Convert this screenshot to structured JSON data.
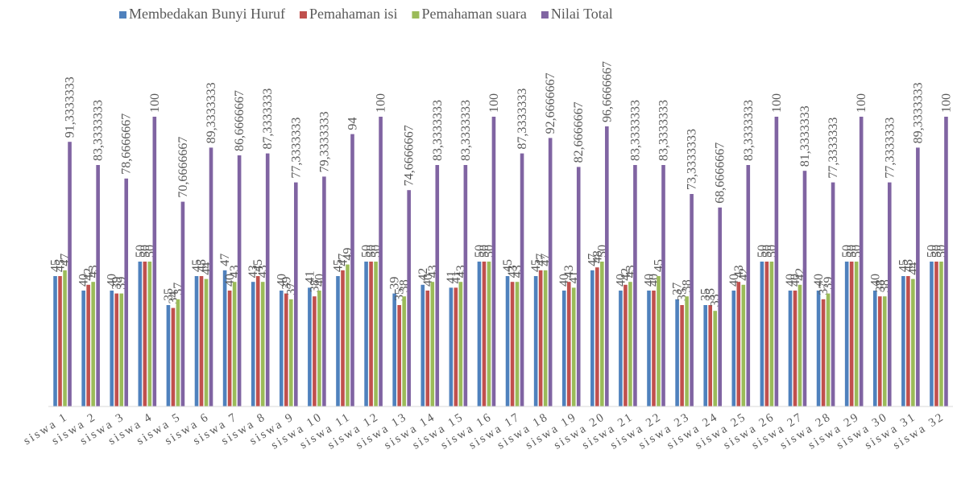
{
  "chart_data": {
    "type": "bar",
    "categories": [
      "siswa 1",
      "siswa 2",
      "siswa 3",
      "siswa 4",
      "siswa 5",
      "siswa 6",
      "siswa 7",
      "siswa 8",
      "siswa 9",
      "siswa 10",
      "siswa 11",
      "siswa 12",
      "siswa 13",
      "siswa 14",
      "siswa 15",
      "siswa 16",
      "siswa 17",
      "siswa 18",
      "siswa 19",
      "siswa 20",
      "siswa 21",
      "siswa 22",
      "siswa 23",
      "siswa 24",
      "siswa 25",
      "siswa 26",
      "siswa 27",
      "siswa 28",
      "siswa 29",
      "siswa 30",
      "siswa 31",
      "siswa 32"
    ],
    "series": [
      {
        "name": "Membedakan Bunyi Huruf",
        "color": "#4f81bd",
        "values": [
          45,
          40,
          40,
          50,
          35,
          45,
          47,
          43,
          40,
          41,
          45,
          50,
          39,
          42,
          41,
          50,
          45,
          45,
          40,
          47,
          40,
          40,
          37,
          35,
          40,
          50,
          40,
          40,
          50,
          40,
          45,
          50
        ]
      },
      {
        "name": "Pemahaman isi",
        "color": "#c0504d",
        "values": [
          45,
          42,
          39,
          50,
          34,
          45,
          40,
          45,
          39,
          38,
          47,
          50,
          35,
          40,
          41,
          50,
          43,
          47,
          43,
          48,
          42,
          40,
          35,
          35,
          43,
          50,
          40,
          37,
          50,
          38,
          45,
          50
        ]
      },
      {
        "name": "Pemahaman suara",
        "color": "#9bbb59",
        "values": [
          47,
          43,
          39,
          50,
          37,
          44,
          43,
          43,
          37,
          40,
          49,
          50,
          38,
          43,
          43,
          50,
          43,
          47,
          41,
          50,
          43,
          45,
          38,
          33,
          42,
          50,
          42,
          39,
          50,
          38,
          44,
          50
        ]
      },
      {
        "name": "Nilai Total",
        "color": "#8064a2",
        "values": [
          91.3333333,
          83.3333333,
          78.6666667,
          100,
          70.6666667,
          89.3333333,
          86.6666667,
          87.3333333,
          77.3333333,
          79.3333333,
          94,
          100,
          74.6666667,
          83.3333333,
          83.3333333,
          100,
          87.3333333,
          92.6666667,
          82.6666667,
          96.6666667,
          83.3333333,
          83.3333333,
          73.3333333,
          68.6666667,
          83.3333333,
          100,
          81.3333333,
          77.3333333,
          100,
          77.3333333,
          89.3333333,
          100
        ],
        "value_labels": [
          "91,3333333",
          "83,3333333",
          "78,6666667",
          "100",
          "70,6666667",
          "89,3333333",
          "86,6666667",
          "87,3333333",
          "77,3333333",
          "79,3333333",
          "94",
          "100",
          "74,6666667",
          "83,3333333",
          "83,3333333",
          "100",
          "87,3333333",
          "92,6666667",
          "82,6666667",
          "96,6666667",
          "83,3333333",
          "83,3333333",
          "73,3333333",
          "68,6666667",
          "83,3333333",
          "100",
          "81,3333333",
          "77,3333333",
          "100",
          "77,3333333",
          "89,3333333",
          "100"
        ]
      }
    ],
    "ylim": [
      0,
      100
    ],
    "legend": "top"
  }
}
